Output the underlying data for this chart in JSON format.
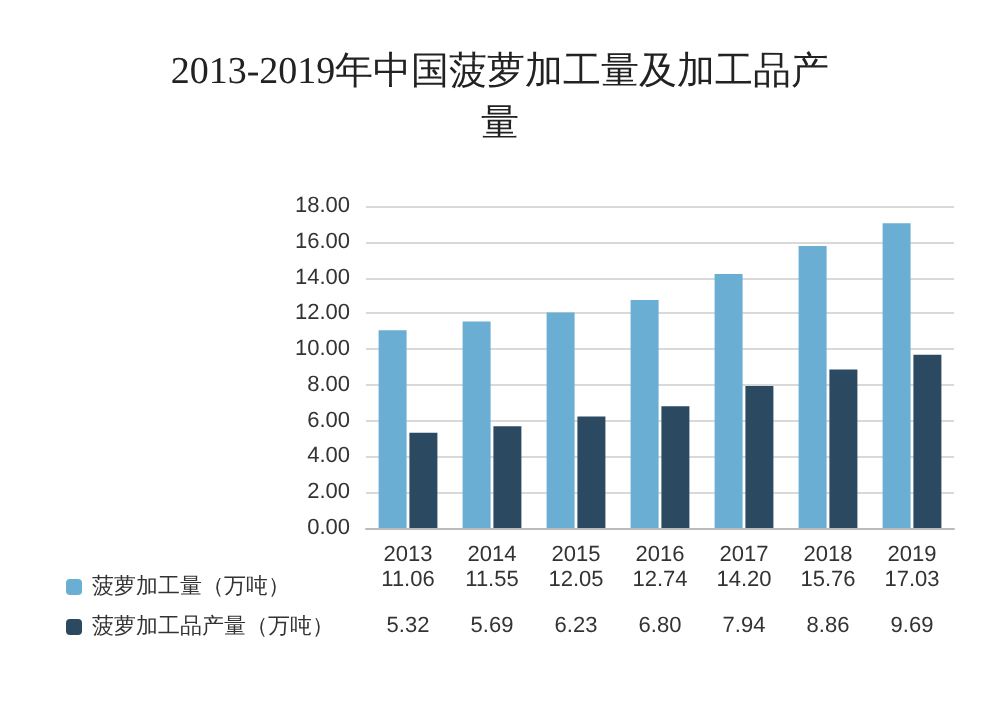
{
  "chart_data": {
    "type": "bar",
    "title": "2013-2019年中国菠萝加工量及加工品产量",
    "categories": [
      "2013",
      "2014",
      "2015",
      "2016",
      "2017",
      "2018",
      "2019"
    ],
    "series": [
      {
        "name": "菠萝加工量（万吨）",
        "color": "#6aaed3",
        "values": [
          11.06,
          11.55,
          12.05,
          12.74,
          14.2,
          15.76,
          17.03
        ],
        "value_labels": [
          "11.06",
          "11.55",
          "12.05",
          "12.74",
          "14.20",
          "15.76",
          "17.03"
        ]
      },
      {
        "name": "菠萝加工品产量（万吨）",
        "color": "#2b4a62",
        "values": [
          5.32,
          5.69,
          6.23,
          6.8,
          7.94,
          8.86,
          9.69
        ],
        "value_labels": [
          "5.32",
          "5.69",
          "6.23",
          "6.80",
          "7.94",
          "8.86",
          "9.69"
        ]
      }
    ],
    "ylim": [
      0,
      18
    ],
    "yticks": [
      {
        "value": 0,
        "label": "0.00"
      },
      {
        "value": 2,
        "label": "2.00"
      },
      {
        "value": 4,
        "label": "4.00"
      },
      {
        "value": 6,
        "label": "6.00"
      },
      {
        "value": 8,
        "label": "8.00"
      },
      {
        "value": 10,
        "label": "10.00"
      },
      {
        "value": 12,
        "label": "12.00"
      },
      {
        "value": 14,
        "label": "14.00"
      },
      {
        "value": 16,
        "label": "16.00"
      },
      {
        "value": 18,
        "label": "18.00"
      }
    ],
    "grid": "y",
    "legend": "bottom left"
  }
}
